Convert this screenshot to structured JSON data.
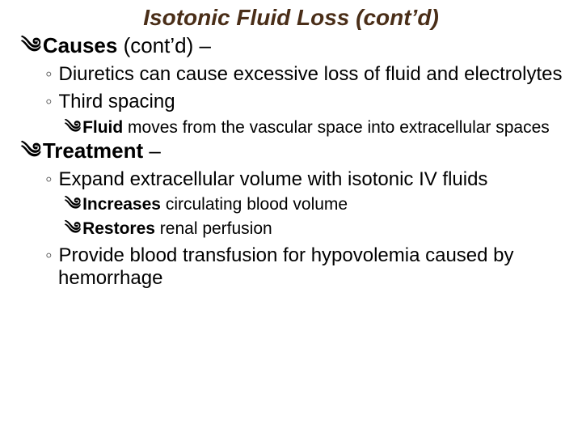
{
  "colors": {
    "title": "#4a2e18",
    "text": "#000000",
    "bullet2": "#5a5a5a",
    "background": "#ffffff"
  },
  "typography": {
    "title_fontsize": 28,
    "lvl1_fontsize": 26,
    "lvl2_fontsize": 24,
    "lvl3_fontsize": 21,
    "title_style": "italic bold",
    "font_family": "Arial"
  },
  "bullets": {
    "lvl1_glyph": "༄",
    "lvl2_glyph": "◦",
    "lvl3_glyph": "༄"
  },
  "title": "Isotonic Fluid Loss (cont’d)",
  "sections": [
    {
      "heading_bold": "Causes",
      "heading_rest": " (cont’d) –",
      "points": [
        {
          "text": "Diuretics can cause excessive loss of fluid and electrolytes",
          "sub": []
        },
        {
          "text": "Third spacing",
          "sub": [
            {
              "bold": "Fluid",
              "rest": " moves from the vascular space into extracellular spaces"
            }
          ]
        }
      ]
    },
    {
      "heading_bold": "Treatment",
      "heading_rest": " –",
      "points": [
        {
          "text": "Expand extracellular volume with isotonic IV fluids",
          "sub": [
            {
              "bold": "Increases",
              "rest": " circulating blood volume"
            },
            {
              "bold": "Restores",
              "rest": " renal perfusion"
            }
          ]
        },
        {
          "text": "Provide blood transfusion for hypovolemia caused by hemorrhage",
          "sub": []
        }
      ]
    }
  ]
}
